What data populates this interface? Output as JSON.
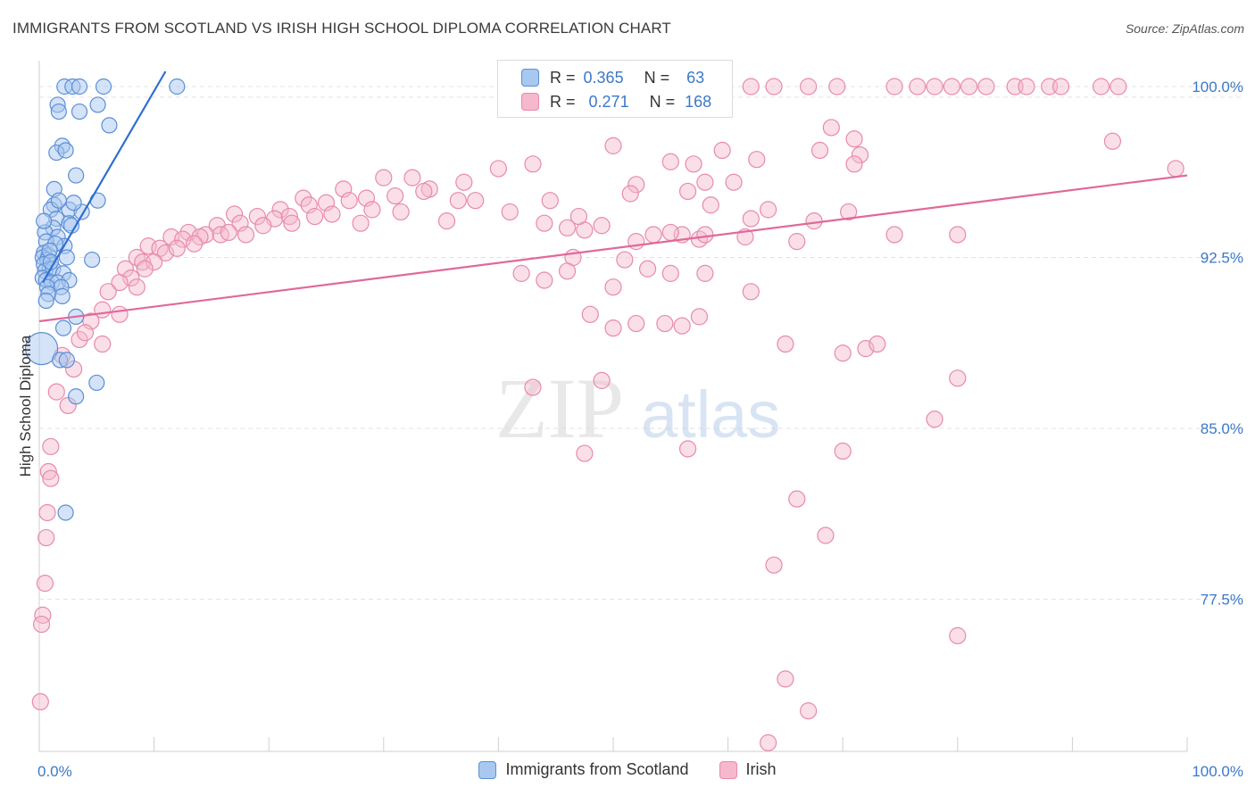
{
  "title": "IMMIGRANTS FROM SCOTLAND VS IRISH HIGH SCHOOL DIPLOMA CORRELATION CHART",
  "source": "Source: ZipAtlas.com",
  "watermark": {
    "zip": "ZIP",
    "atlas": "atlas"
  },
  "colors": {
    "blue_fill": "#a9c8f0",
    "blue_stroke": "#5b8fd6",
    "blue_line": "#2f6fd1",
    "pink_fill": "#f5b8cc",
    "pink_stroke": "#e88aa8",
    "pink_line": "#e0699a",
    "axis_label": "#3c78c8",
    "grid": "#e3e3e3"
  },
  "stats_box": {
    "rows": [
      {
        "series": "Immigrants from Scotland",
        "r_label": "R =",
        "r_value": "0.365",
        "n_label": "N =",
        "n_value": "63"
      },
      {
        "series": "Irish",
        "r_label": "R =",
        "r_value": "0.271",
        "n_label": "N =",
        "n_value": "168"
      }
    ]
  },
  "legend": [
    {
      "label": "Immigrants from Scotland"
    },
    {
      "label": "Irish"
    }
  ],
  "chart_data": {
    "type": "scatter",
    "title": "IMMIGRANTS FROM SCOTLAND VS IRISH HIGH SCHOOL DIPLOMA CORRELATION CHART",
    "xlabel": "",
    "ylabel": "High School Diploma",
    "xlim": [
      0,
      100
    ],
    "ylim": [
      71.0,
      101.5
    ],
    "x_tick_labels": [
      {
        "value": 0,
        "label": "0.0%"
      },
      {
        "value": 100,
        "label": "100.0%"
      }
    ],
    "y_tick_labels": [
      {
        "value": 100.0,
        "label": "100.0%"
      },
      {
        "value": 92.5,
        "label": "92.5%"
      },
      {
        "value": 85.0,
        "label": "85.0%"
      },
      {
        "value": 77.5,
        "label": "77.5%"
      }
    ],
    "grid": true,
    "legend_position": "bottom",
    "series": [
      {
        "name": "Immigrants from Scotland",
        "color": "blue",
        "R": 0.365,
        "N": 63,
        "trend": {
          "x": [
            0.3,
            11.0
          ],
          "y": [
            91.4,
            100.0
          ]
        },
        "points": [
          [
            2.2,
            100.0
          ],
          [
            2.9,
            100.0
          ],
          [
            3.5,
            100.0
          ],
          [
            5.6,
            100.0
          ],
          [
            12.0,
            100.0
          ],
          [
            1.6,
            99.2
          ],
          [
            3.5,
            98.9
          ],
          [
            5.1,
            99.2
          ],
          [
            1.7,
            98.9
          ],
          [
            6.1,
            98.3
          ],
          [
            2.0,
            97.4
          ],
          [
            1.5,
            97.1
          ],
          [
            2.3,
            97.2
          ],
          [
            3.2,
            96.1
          ],
          [
            1.3,
            95.5
          ],
          [
            5.1,
            95.0
          ],
          [
            1.3,
            94.8
          ],
          [
            1.0,
            94.6
          ],
          [
            2.6,
            94.6
          ],
          [
            3.7,
            94.5
          ],
          [
            1.5,
            94.2
          ],
          [
            2.6,
            94.0
          ],
          [
            1.2,
            93.8
          ],
          [
            0.5,
            93.6
          ],
          [
            1.6,
            93.4
          ],
          [
            0.6,
            93.2
          ],
          [
            2.2,
            93.0
          ],
          [
            0.4,
            92.7
          ],
          [
            0.8,
            92.6
          ],
          [
            0.3,
            92.5
          ],
          [
            0.7,
            92.4
          ],
          [
            2.4,
            92.5
          ],
          [
            4.6,
            92.4
          ],
          [
            0.4,
            92.2
          ],
          [
            0.9,
            92.0
          ],
          [
            0.5,
            91.9
          ],
          [
            1.2,
            92.0
          ],
          [
            2.1,
            91.8
          ],
          [
            0.3,
            91.6
          ],
          [
            0.6,
            91.5
          ],
          [
            1.1,
            91.4
          ],
          [
            1.6,
            91.4
          ],
          [
            2.6,
            91.5
          ],
          [
            0.7,
            91.2
          ],
          [
            1.9,
            91.2
          ],
          [
            0.8,
            90.9
          ],
          [
            2.0,
            90.8
          ],
          [
            0.6,
            90.6
          ],
          [
            3.2,
            89.9
          ],
          [
            2.1,
            89.4
          ],
          [
            0.2,
            88.5
          ],
          [
            1.8,
            88.0
          ],
          [
            2.4,
            88.0
          ],
          [
            5.0,
            87.0
          ],
          [
            3.2,
            86.4
          ],
          [
            2.3,
            81.3
          ],
          [
            1.4,
            93.1
          ],
          [
            0.9,
            92.8
          ],
          [
            1.0,
            92.3
          ],
          [
            3.0,
            94.9
          ],
          [
            1.7,
            95.0
          ],
          [
            0.4,
            94.1
          ],
          [
            2.8,
            93.9
          ]
        ]
      },
      {
        "name": "Irish",
        "color": "pink",
        "R": 0.271,
        "N": 168,
        "trend": {
          "x": [
            0.0,
            100.0
          ],
          "y": [
            89.7,
            96.1
          ]
        },
        "points": [
          [
            59.5,
            100.0
          ],
          [
            62.0,
            100.0
          ],
          [
            64.0,
            100.0
          ],
          [
            67.0,
            100.0
          ],
          [
            69.5,
            100.0
          ],
          [
            74.5,
            100.0
          ],
          [
            76.5,
            100.0
          ],
          [
            78.0,
            100.0
          ],
          [
            79.5,
            100.0
          ],
          [
            81.0,
            100.0
          ],
          [
            82.5,
            100.0
          ],
          [
            85.0,
            100.0
          ],
          [
            86.0,
            100.0
          ],
          [
            88.0,
            100.0
          ],
          [
            89.0,
            100.0
          ],
          [
            92.5,
            100.0
          ],
          [
            94.0,
            100.0
          ],
          [
            69.0,
            98.2
          ],
          [
            71.0,
            97.7
          ],
          [
            68.0,
            97.2
          ],
          [
            71.5,
            97.0
          ],
          [
            93.5,
            97.6
          ],
          [
            50.0,
            97.4
          ],
          [
            59.5,
            97.2
          ],
          [
            71.0,
            96.6
          ],
          [
            40.0,
            96.4
          ],
          [
            55.0,
            96.7
          ],
          [
            57.0,
            96.6
          ],
          [
            43.0,
            96.6
          ],
          [
            30.0,
            96.0
          ],
          [
            32.5,
            96.0
          ],
          [
            37.0,
            95.8
          ],
          [
            52.0,
            95.7
          ],
          [
            56.5,
            95.4
          ],
          [
            58.0,
            95.8
          ],
          [
            99.0,
            96.4
          ],
          [
            34.0,
            95.5
          ],
          [
            36.5,
            95.0
          ],
          [
            38.0,
            95.0
          ],
          [
            26.5,
            95.5
          ],
          [
            28.5,
            95.1
          ],
          [
            31.0,
            95.2
          ],
          [
            33.5,
            95.4
          ],
          [
            23.0,
            95.1
          ],
          [
            25.0,
            94.9
          ],
          [
            27.0,
            95.0
          ],
          [
            29.0,
            94.6
          ],
          [
            31.5,
            94.5
          ],
          [
            21.0,
            94.6
          ],
          [
            23.5,
            94.8
          ],
          [
            25.5,
            94.4
          ],
          [
            17.0,
            94.4
          ],
          [
            19.0,
            94.3
          ],
          [
            20.5,
            94.2
          ],
          [
            21.8,
            94.3
          ],
          [
            15.5,
            93.9
          ],
          [
            17.5,
            94.0
          ],
          [
            19.5,
            93.9
          ],
          [
            22.0,
            94.0
          ],
          [
            24.0,
            94.3
          ],
          [
            13.0,
            93.6
          ],
          [
            14.5,
            93.5
          ],
          [
            15.8,
            93.5
          ],
          [
            16.5,
            93.6
          ],
          [
            18.0,
            93.5
          ],
          [
            11.5,
            93.4
          ],
          [
            12.5,
            93.3
          ],
          [
            14.0,
            93.4
          ],
          [
            9.5,
            93.0
          ],
          [
            10.5,
            92.9
          ],
          [
            11.0,
            92.7
          ],
          [
            12.0,
            92.9
          ],
          [
            13.5,
            93.1
          ],
          [
            8.5,
            92.5
          ],
          [
            9.0,
            92.3
          ],
          [
            10.0,
            92.3
          ],
          [
            7.5,
            92.0
          ],
          [
            8.0,
            91.6
          ],
          [
            9.2,
            92.0
          ],
          [
            7.0,
            91.4
          ],
          [
            6.0,
            91.0
          ],
          [
            8.5,
            91.2
          ],
          [
            5.5,
            90.2
          ],
          [
            4.5,
            89.7
          ],
          [
            7.0,
            90.0
          ],
          [
            3.5,
            88.9
          ],
          [
            4.0,
            89.2
          ],
          [
            5.5,
            88.7
          ],
          [
            2.0,
            88.2
          ],
          [
            3.0,
            87.6
          ],
          [
            1.5,
            86.6
          ],
          [
            2.5,
            86.0
          ],
          [
            1.0,
            84.2
          ],
          [
            0.8,
            83.1
          ],
          [
            1.0,
            82.8
          ],
          [
            0.7,
            81.3
          ],
          [
            0.6,
            80.2
          ],
          [
            0.5,
            78.2
          ],
          [
            0.3,
            76.8
          ],
          [
            0.2,
            76.4
          ],
          [
            0.1,
            73.0
          ],
          [
            56.0,
            93.5
          ],
          [
            57.5,
            93.3
          ],
          [
            58.0,
            93.5
          ],
          [
            62.0,
            94.2
          ],
          [
            66.0,
            93.2
          ],
          [
            67.5,
            94.1
          ],
          [
            70.5,
            94.5
          ],
          [
            74.5,
            93.5
          ],
          [
            80.0,
            93.5
          ],
          [
            44.0,
            94.0
          ],
          [
            46.0,
            93.8
          ],
          [
            47.5,
            93.7
          ],
          [
            49.0,
            93.9
          ],
          [
            52.0,
            93.2
          ],
          [
            53.5,
            93.5
          ],
          [
            55.0,
            93.6
          ],
          [
            46.5,
            92.5
          ],
          [
            51.0,
            92.4
          ],
          [
            53.0,
            92.0
          ],
          [
            42.0,
            91.8
          ],
          [
            44.0,
            91.5
          ],
          [
            46.0,
            91.9
          ],
          [
            50.0,
            91.2
          ],
          [
            55.0,
            91.8
          ],
          [
            58.0,
            91.8
          ],
          [
            62.0,
            91.0
          ],
          [
            48.0,
            90.0
          ],
          [
            50.0,
            89.4
          ],
          [
            52.0,
            89.6
          ],
          [
            54.5,
            89.6
          ],
          [
            56.0,
            89.5
          ],
          [
            57.5,
            89.9
          ],
          [
            65.0,
            88.7
          ],
          [
            70.0,
            88.3
          ],
          [
            72.0,
            88.5
          ],
          [
            73.0,
            88.7
          ],
          [
            80.0,
            87.2
          ],
          [
            43.0,
            86.8
          ],
          [
            49.0,
            87.1
          ],
          [
            78.0,
            85.4
          ],
          [
            47.5,
            83.9
          ],
          [
            56.5,
            84.1
          ],
          [
            70.0,
            84.0
          ],
          [
            66.0,
            81.9
          ],
          [
            68.5,
            80.3
          ],
          [
            64.0,
            79.0
          ],
          [
            80.0,
            75.9
          ],
          [
            65.0,
            74.0
          ],
          [
            67.0,
            72.6
          ],
          [
            63.5,
            71.2
          ],
          [
            62.5,
            96.8
          ],
          [
            60.5,
            95.8
          ],
          [
            63.5,
            94.6
          ],
          [
            28.0,
            94.0
          ],
          [
            35.5,
            94.1
          ],
          [
            41.0,
            94.5
          ],
          [
            44.5,
            95.0
          ],
          [
            47.0,
            94.3
          ],
          [
            51.5,
            95.3
          ],
          [
            58.5,
            94.8
          ],
          [
            61.5,
            93.4
          ]
        ]
      }
    ]
  }
}
